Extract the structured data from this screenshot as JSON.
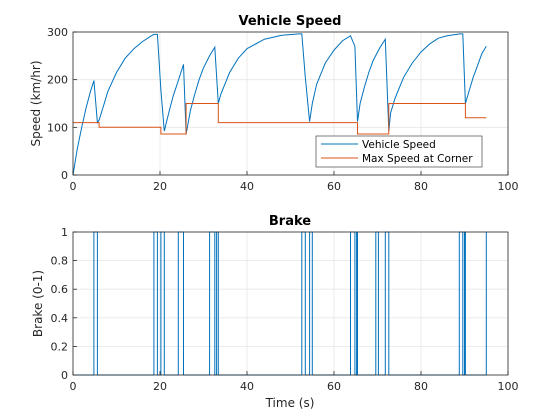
{
  "colors": {
    "speed": "#0072BD",
    "corner": "#D95319",
    "grid": "#e6e6e6",
    "axes": "#262626"
  },
  "chart_data": [
    {
      "type": "line",
      "title": "Vehicle Speed",
      "ylabel": "Speed (km/hr)",
      "xlabel": "",
      "xlim": [
        0,
        100
      ],
      "ylim": [
        0,
        300
      ],
      "xticks": [
        "0",
        "20",
        "40",
        "60",
        "80",
        "100"
      ],
      "yticks": [
        "0",
        "100",
        "200",
        "300"
      ],
      "grid": true,
      "legend": "bottom-right",
      "series": [
        {
          "name": "Vehicle Speed",
          "x": [
            0,
            1,
            2,
            3,
            4,
            4.8,
            5.6,
            6,
            7,
            8,
            10,
            12,
            14,
            16,
            18,
            18.6,
            19.4,
            20.2,
            21,
            22,
            23,
            24.2,
            25.4,
            26,
            27,
            28,
            29,
            30,
            31.4,
            32.6,
            33.4,
            34,
            36,
            38,
            40,
            44,
            48,
            52,
            52.6,
            53.4,
            54.4,
            55,
            56,
            58,
            60,
            62,
            63.8,
            64.8,
            65.4,
            66,
            67,
            68,
            69,
            70.6,
            71.8,
            72.6,
            73,
            74,
            76,
            78,
            80,
            82,
            84,
            86,
            89,
            89.6,
            90.2,
            91,
            92,
            93,
            94,
            95
          ],
          "y": [
            0,
            55,
            100,
            140,
            175,
            198,
            110,
            115,
            145,
            175,
            215,
            245,
            265,
            280,
            292,
            295,
            295,
            178,
            92,
            130,
            165,
            198,
            232,
            86,
            135,
            170,
            200,
            225,
            250,
            268,
            150,
            170,
            215,
            245,
            265,
            285,
            293,
            296,
            296,
            205,
            112,
            150,
            190,
            235,
            262,
            282,
            292,
            270,
            112,
            150,
            185,
            215,
            240,
            268,
            285,
            92,
            130,
            160,
            205,
            235,
            258,
            275,
            287,
            292,
            296,
            296,
            150,
            175,
            205,
            230,
            255,
            270
          ]
        },
        {
          "name": "Max Speed at Corner",
          "steps": [
            [
              0,
              110
            ],
            [
              6,
              100
            ],
            [
              20.2,
              86
            ],
            [
              26,
              150
            ],
            [
              33.4,
              110
            ],
            [
              65.4,
              86
            ],
            [
              72.6,
              150
            ],
            [
              90.2,
              120
            ],
            [
              95,
              120
            ]
          ]
        }
      ]
    },
    {
      "type": "line",
      "title": "Brake",
      "ylabel": "Brake (0-1)",
      "xlabel": "Time (s)",
      "xlim": [
        0,
        100
      ],
      "ylim": [
        0,
        1
      ],
      "xticks": [
        "0",
        "20",
        "40",
        "60",
        "80",
        "100"
      ],
      "yticks": [
        "0",
        "0.2",
        "0.4",
        "0.6",
        "0.8",
        "1"
      ],
      "grid": true,
      "series": [
        {
          "name": "Brake",
          "pulses": [
            [
              4.8,
              5.6
            ],
            [
              18.6,
              19.4
            ],
            [
              20.2,
              21
            ],
            [
              24.2,
              25.4
            ],
            [
              31.4,
              32.6
            ],
            [
              33,
              33.4
            ],
            [
              52.6,
              53.4
            ],
            [
              54.4,
              55
            ],
            [
              63.8,
              64.8
            ],
            [
              65.2,
              65.4
            ],
            [
              69.6,
              70.2
            ],
            [
              71.8,
              72.6
            ],
            [
              88.8,
              89.6
            ],
            [
              90,
              90.2
            ],
            [
              95,
              95
            ]
          ]
        }
      ]
    }
  ]
}
